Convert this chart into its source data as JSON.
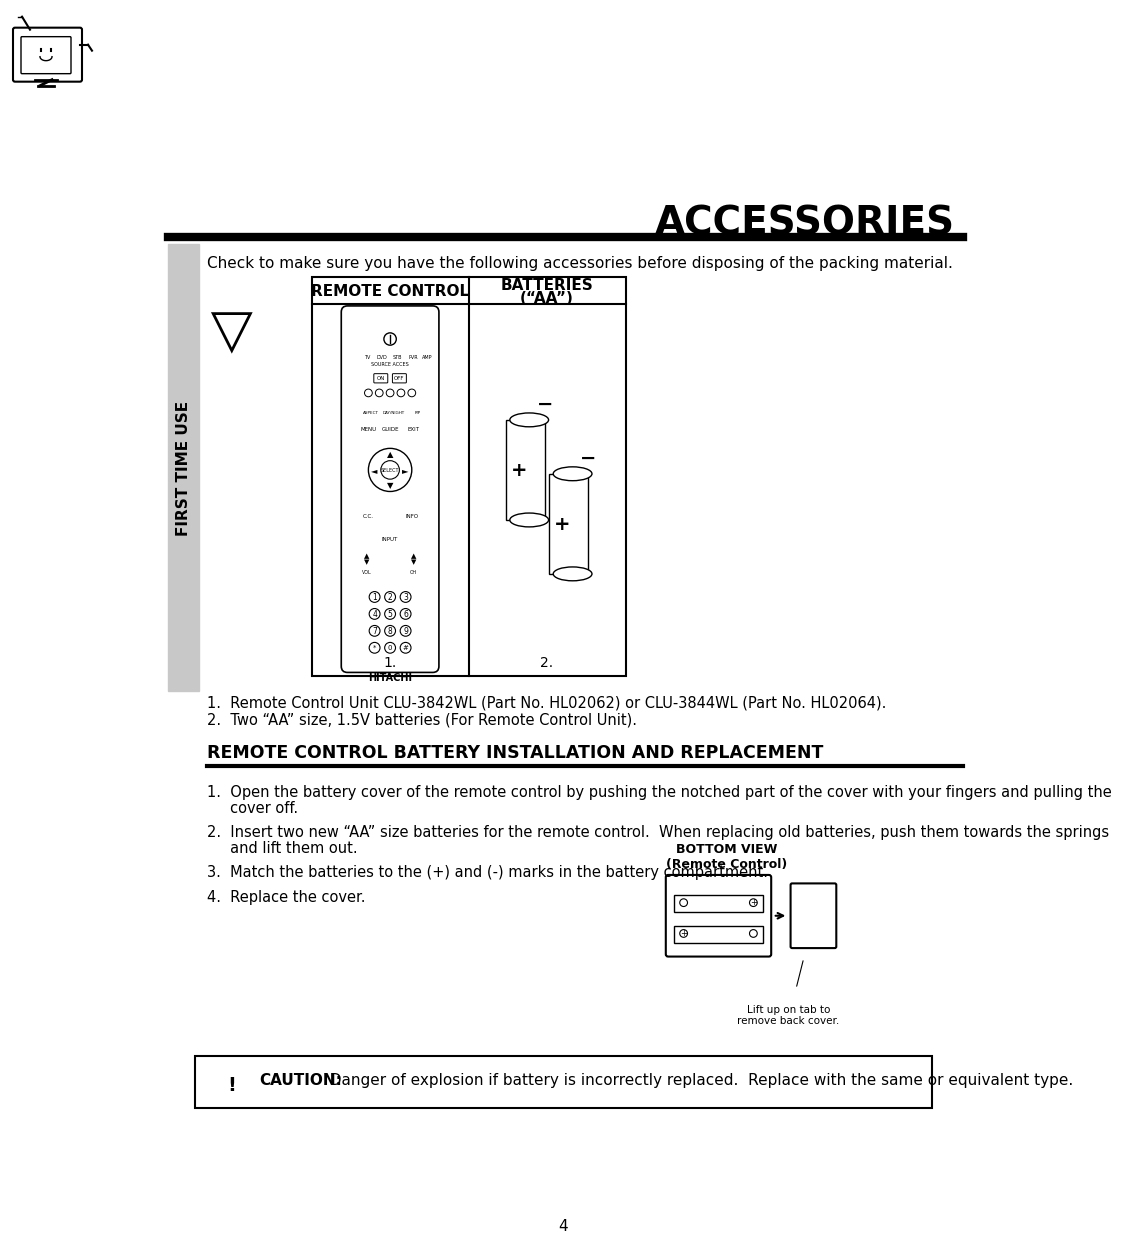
{
  "title": "ACCESSORIES",
  "page_number": "4",
  "background_color": "#ffffff",
  "sidebar_color": "#c8c8c8",
  "sidebar_text": "FIRST TIME USE",
  "header_line_color": "#000000",
  "intro_text": "Check to make sure you have the following accessories before disposing of the packing material.",
  "table_headers": [
    "REMOTE CONTROL",
    "BATTERIES\n(“AA”)"
  ],
  "item_list": [
    "1.  Remote Control Unit CLU-3842WL (Part No. HL02062) or CLU-3844WL (Part No. HL02064).",
    "2.  Two “AA” size, 1.5V batteries (For Remote Control Unit)."
  ],
  "section_title": "REMOTE CONTROL BATTERY INSTALLATION AND REPLACEMENT",
  "instructions": [
    "1.  Open the battery cover of the remote control by pushing the notched part of the cover with your fingers and pulling the\n     cover off.",
    "2.  Insert two new “AA” size batteries for the remote control.  When replacing old batteries, push them towards the springs\n     and lift them out.",
    "3.  Match the batteries to the (+) and (-) marks in the battery compartment.",
    "4.  Replace the cover."
  ],
  "bottom_view_label": "BOTTOM VIEW\n(Remote Control)",
  "lift_label": "Lift up on tab to\nremove back cover.",
  "caution_bold": "CAUTION:",
  "caution_text": "  Danger of explosion if battery is incorrectly replaced.  Replace with the same or equivalent type."
}
